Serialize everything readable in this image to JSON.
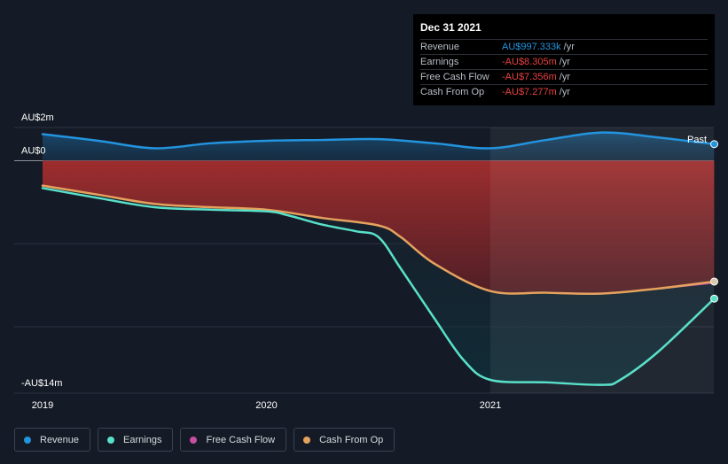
{
  "chart_data": {
    "type": "area",
    "x_labels": [
      "2019",
      "2020",
      "2021"
    ],
    "y_labels": {
      "top": "AU$2m",
      "zero": "AU$0",
      "bottom": "-AU$14m"
    },
    "ylim": [
      -14,
      2
    ],
    "past_label": "Past",
    "series": [
      {
        "name": "Revenue",
        "color": "#2394df",
        "x": [
          2019.0,
          2019.25,
          2019.5,
          2019.75,
          2020.0,
          2020.25,
          2020.5,
          2020.75,
          2021.0,
          2021.25,
          2021.5,
          2021.75,
          2022.0
        ],
        "y": [
          1.6,
          1.2,
          0.75,
          1.05,
          1.2,
          1.25,
          1.3,
          1.05,
          0.75,
          1.25,
          1.7,
          1.4,
          1.0
        ]
      },
      {
        "name": "Earnings",
        "color": "#59e0c9",
        "x": [
          2019.0,
          2019.25,
          2019.5,
          2019.75,
          2020.0,
          2020.1,
          2020.25,
          2020.4,
          2020.5,
          2020.6,
          2020.75,
          2020.88,
          2021.0,
          2021.25,
          2021.5,
          2021.58,
          2021.75,
          2022.0
        ],
        "y": [
          -1.65,
          -2.25,
          -2.8,
          -2.95,
          -3.05,
          -3.3,
          -3.85,
          -4.25,
          -4.6,
          -6.5,
          -9.5,
          -12.0,
          -13.2,
          -13.35,
          -13.5,
          -13.2,
          -11.5,
          -8.305
        ]
      },
      {
        "name": "Free Cash Flow",
        "color": "#c54fa0",
        "x": [
          2019.0,
          2019.25,
          2019.5,
          2019.75,
          2020.0,
          2020.25,
          2020.5,
          2020.6,
          2020.75,
          2021.0,
          2021.25,
          2021.5,
          2021.75,
          2022.0
        ],
        "y": [
          -1.5,
          -2.05,
          -2.6,
          -2.8,
          -2.95,
          -3.45,
          -3.9,
          -4.6,
          -6.2,
          -7.85,
          -7.95,
          -8.0,
          -7.7,
          -7.356
        ]
      },
      {
        "name": "Cash From Op",
        "color": "#e5a25d",
        "x": [
          2019.0,
          2019.25,
          2019.5,
          2019.75,
          2020.0,
          2020.25,
          2020.5,
          2020.6,
          2020.75,
          2021.0,
          2021.25,
          2021.5,
          2021.75,
          2022.0
        ],
        "y": [
          -1.5,
          -2.05,
          -2.6,
          -2.8,
          -2.95,
          -3.45,
          -3.9,
          -4.6,
          -6.2,
          -7.85,
          -7.95,
          -8.0,
          -7.7,
          -7.277
        ]
      }
    ]
  },
  "tooltip": {
    "date": "Dec 31 2021",
    "rows": [
      {
        "label": "Revenue",
        "value": "AU$997.333k",
        "unit": "/yr"
      },
      {
        "label": "Earnings",
        "value": "-AU$8.305m",
        "unit": "/yr"
      },
      {
        "label": "Free Cash Flow",
        "value": "-AU$7.356m",
        "unit": "/yr"
      },
      {
        "label": "Cash From Op",
        "value": "-AU$7.277m",
        "unit": "/yr"
      }
    ]
  },
  "legend": [
    {
      "label": "Revenue",
      "color": "#2394df"
    },
    {
      "label": "Earnings",
      "color": "#59e0c9"
    },
    {
      "label": "Free Cash Flow",
      "color": "#c54fa0"
    },
    {
      "label": "Cash From Op",
      "color": "#e5a25d"
    }
  ]
}
